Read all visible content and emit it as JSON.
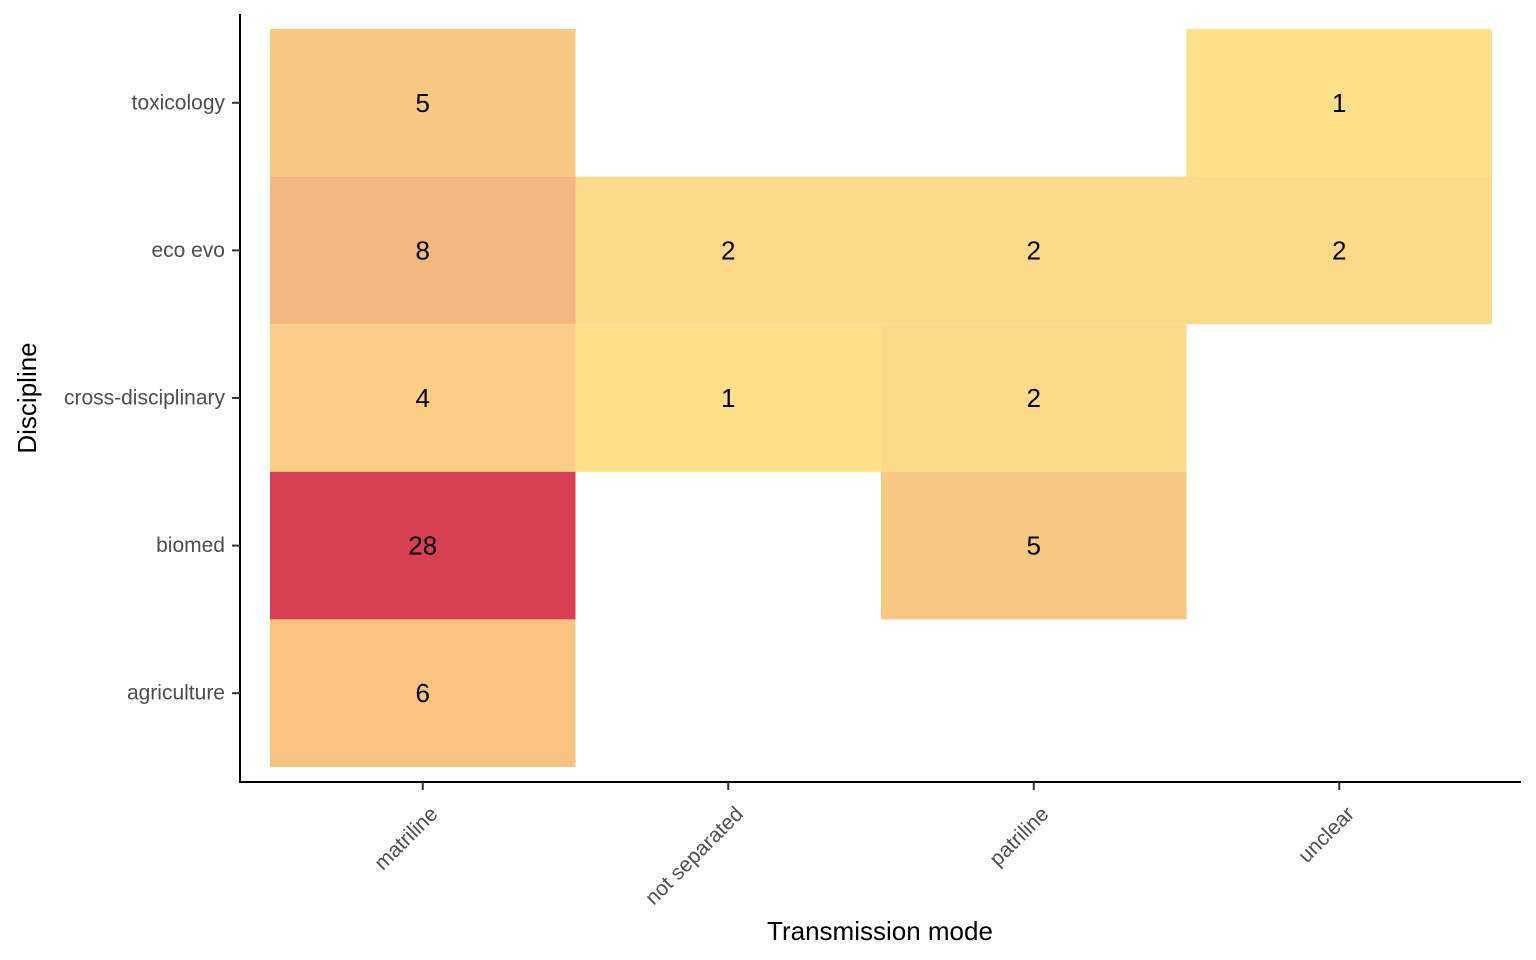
{
  "chart_data": {
    "type": "heatmap",
    "title": "",
    "xlabel": "Transmission mode",
    "ylabel": "Discipline",
    "x_categories": [
      "matriline",
      "not separated",
      "patriline",
      "unclear"
    ],
    "y_categories": [
      "agriculture",
      "biomed",
      "cross-disciplinary",
      "eco evo",
      "toxicology"
    ],
    "cells": [
      {
        "x": "matriline",
        "y": "toxicology",
        "value": 5
      },
      {
        "x": "unclear",
        "y": "toxicology",
        "value": 1
      },
      {
        "x": "matriline",
        "y": "eco evo",
        "value": 8
      },
      {
        "x": "not separated",
        "y": "eco evo",
        "value": 2
      },
      {
        "x": "patriline",
        "y": "eco evo",
        "value": 2
      },
      {
        "x": "unclear",
        "y": "eco evo",
        "value": 2
      },
      {
        "x": "matriline",
        "y": "cross-disciplinary",
        "value": 4
      },
      {
        "x": "not separated",
        "y": "cross-disciplinary",
        "value": 1
      },
      {
        "x": "patriline",
        "y": "cross-disciplinary",
        "value": 2
      },
      {
        "x": "matriline",
        "y": "biomed",
        "value": 28
      },
      {
        "x": "patriline",
        "y": "biomed",
        "value": 5
      },
      {
        "x": "matriline",
        "y": "agriculture",
        "value": 6
      }
    ],
    "color_scale": {
      "low": "#fee08b",
      "mid": "#f4b97e",
      "high": "#d73f52"
    },
    "grid": false,
    "legend": "none"
  }
}
